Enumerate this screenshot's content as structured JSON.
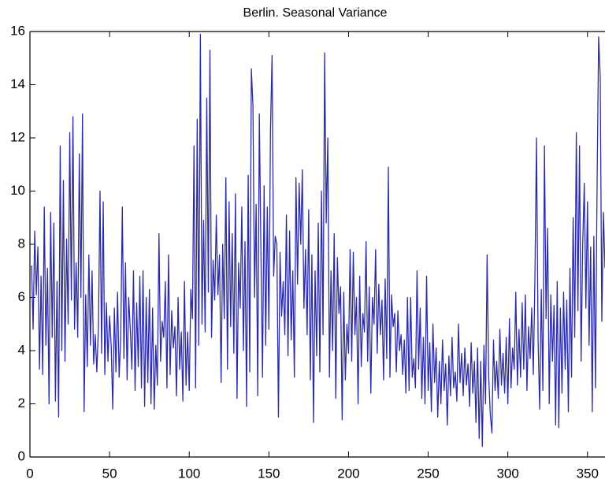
{
  "chart_data": {
    "type": "line",
    "title": "Berlin. Seasonal Variance",
    "color": "#2b2ba8",
    "xlim": [
      0,
      361
    ],
    "ylim": [
      0,
      16
    ],
    "xticks": [
      0,
      50,
      100,
      150,
      200,
      250,
      300,
      350
    ],
    "yticks": [
      0,
      2,
      4,
      6,
      8,
      10,
      12,
      14,
      16
    ],
    "x": [
      1,
      2,
      3,
      4,
      5,
      6,
      7,
      8,
      9,
      10,
      11,
      12,
      13,
      14,
      15,
      16,
      17,
      18,
      19,
      20,
      21,
      22,
      23,
      24,
      25,
      26,
      27,
      28,
      29,
      30,
      31,
      32,
      33,
      34,
      35,
      36,
      37,
      38,
      39,
      40,
      41,
      42,
      43,
      44,
      45,
      46,
      47,
      48,
      49,
      50,
      51,
      52,
      53,
      54,
      55,
      56,
      57,
      58,
      59,
      60,
      61,
      62,
      63,
      64,
      65,
      66,
      67,
      68,
      69,
      70,
      71,
      72,
      73,
      74,
      75,
      76,
      77,
      78,
      79,
      80,
      81,
      82,
      83,
      84,
      85,
      86,
      87,
      88,
      89,
      90,
      91,
      92,
      93,
      94,
      95,
      96,
      97,
      98,
      99,
      100,
      101,
      102,
      103,
      104,
      105,
      106,
      107,
      108,
      109,
      110,
      111,
      112,
      113,
      114,
      115,
      116,
      117,
      118,
      119,
      120,
      121,
      122,
      123,
      124,
      125,
      126,
      127,
      128,
      129,
      130,
      131,
      132,
      133,
      134,
      135,
      136,
      137,
      138,
      139,
      140,
      141,
      142,
      143,
      144,
      145,
      146,
      147,
      148,
      149,
      150,
      151,
      152,
      153,
      154,
      155,
      156,
      157,
      158,
      159,
      160,
      161,
      162,
      163,
      164,
      165,
      166,
      167,
      168,
      169,
      170,
      171,
      172,
      173,
      174,
      175,
      176,
      177,
      178,
      179,
      180,
      181,
      182,
      183,
      184,
      185,
      186,
      187,
      188,
      189,
      190,
      191,
      192,
      193,
      194,
      195,
      196,
      197,
      198,
      199,
      200,
      201,
      202,
      203,
      204,
      205,
      206,
      207,
      208,
      209,
      210,
      211,
      212,
      213,
      214,
      215,
      216,
      217,
      218,
      219,
      220,
      221,
      222,
      223,
      224,
      225,
      226,
      227,
      228,
      229,
      230,
      231,
      232,
      233,
      234,
      235,
      236,
      237,
      238,
      239,
      240,
      241,
      242,
      243,
      244,
      245,
      246,
      247,
      248,
      249,
      250,
      251,
      252,
      253,
      254,
      255,
      256,
      257,
      258,
      259,
      260,
      261,
      262,
      263,
      264,
      265,
      266,
      267,
      268,
      269,
      270,
      271,
      272,
      273,
      274,
      275,
      276,
      277,
      278,
      279,
      280,
      281,
      282,
      283,
      284,
      285,
      286,
      287,
      288,
      289,
      290,
      291,
      292,
      293,
      294,
      295,
      296,
      297,
      298,
      299,
      300,
      301,
      302,
      303,
      304,
      305,
      306,
      307,
      308,
      309,
      310,
      311,
      312,
      313,
      314,
      315,
      316,
      317,
      318,
      319,
      320,
      321,
      322,
      323,
      324,
      325,
      326,
      327,
      328,
      329,
      330,
      331,
      332,
      333,
      334,
      335,
      336,
      337,
      338,
      339,
      340,
      341,
      342,
      343,
      344,
      345,
      346,
      347,
      348,
      349,
      350,
      351,
      352,
      353,
      354,
      355,
      356,
      357,
      358,
      359,
      360,
      361
    ],
    "values": [
      7.2,
      4.8,
      8.5,
      6.1,
      7.9,
      3.3,
      6.8,
      3.1,
      9.4,
      4.2,
      7.1,
      2.0,
      9.2,
      4.5,
      8.8,
      2.1,
      6.6,
      1.5,
      11.7,
      4.0,
      10.4,
      3.6,
      8.2,
      5.0,
      12.2,
      5.9,
      12.8,
      4.8,
      7.3,
      4.5,
      11.4,
      6.0,
      12.9,
      1.7,
      6.1,
      3.4,
      7.6,
      4.2,
      7.0,
      3.5,
      4.6,
      3.2,
      4.9,
      10.0,
      3.9,
      9.6,
      3.1,
      5.8,
      3.6,
      5.3,
      4.2,
      1.8,
      5.6,
      3.2,
      6.2,
      3.0,
      4.5,
      9.4,
      3.7,
      7.3,
      2.9,
      6.0,
      4.8,
      3.3,
      7.0,
      2.5,
      5.8,
      3.4,
      6.8,
      2.6,
      7.0,
      1.9,
      6.0,
      2.8,
      6.3,
      2.0,
      5.6,
      1.8,
      4.2,
      2.7,
      8.4,
      3.6,
      5.1,
      4.5,
      6.6,
      2.6,
      7.6,
      3.1,
      5.5,
      4.1,
      4.9,
      2.3,
      6.0,
      3.3,
      4.7,
      2.1,
      6.6,
      2.7,
      4.7,
      2.5,
      6.3,
      5.2,
      11.7,
      2.6,
      12.7,
      4.2,
      15.9,
      5.0,
      8.9,
      4.7,
      13.5,
      6.2,
      15.3,
      4.5,
      7.4,
      5.9,
      9.1,
      6.1,
      7.6,
      2.8,
      8.0,
      5.2,
      10.5,
      3.3,
      9.6,
      4.9,
      8.4,
      3.9,
      9.9,
      2.2,
      7.3,
      5.6,
      9.4,
      4.0,
      8.1,
      1.9,
      10.6,
      3.2,
      14.6,
      13.2,
      6.0,
      9.5,
      2.3,
      12.9,
      7.8,
      3.0,
      10.2,
      4.2,
      9.4,
      4.8,
      12.3,
      15.1,
      6.8,
      8.3,
      8.0,
      1.5,
      7.7,
      5.3,
      6.6,
      4.6,
      9.1,
      3.8,
      8.5,
      4.4,
      7.0,
      3.0,
      10.5,
      6.5,
      10.3,
      8.0,
      10.8,
      5.6,
      7.8,
      4.6,
      9.3,
      2.9,
      7.6,
      1.3,
      7.0,
      3.8,
      8.8,
      3.2,
      10.0,
      4.6,
      15.2,
      8.8,
      12.0,
      3.0,
      7.0,
      4.0,
      8.4,
      2.2,
      7.5,
      5.4,
      6.4,
      1.4,
      6.2,
      2.9,
      5.0,
      3.9,
      7.8,
      3.6,
      7.7,
      4.6,
      6.0,
      2.0,
      6.8,
      3.4,
      5.4,
      4.7,
      8.1,
      3.6,
      6.4,
      2.4,
      6.0,
      5.0,
      7.8,
      3.9,
      6.5,
      4.6,
      5.9,
      2.9,
      6.7,
      3.7,
      10.9,
      3.0,
      6.1,
      4.9,
      5.4,
      3.2,
      5.5,
      4.0,
      4.6,
      3.1,
      4.4,
      2.4,
      6.0,
      2.5,
      6.0,
      3.0,
      3.7,
      2.6,
      7.0,
      3.3,
      5.6,
      2.2,
      4.5,
      2.0,
      6.8,
      2.5,
      4.3,
      1.7,
      5.0,
      2.8,
      4.1,
      1.5,
      3.6,
      2.0,
      4.4,
      2.5,
      3.5,
      1.2,
      3.8,
      2.3,
      4.5,
      2.6,
      3.2,
      2.1,
      5.0,
      2.8,
      3.9,
      2.3,
      4.1,
      2.7,
      3.5,
      1.9,
      4.3,
      2.4,
      3.6,
      1.3,
      4.1,
      0.7,
      3.6,
      0.4,
      4.2,
      2.0,
      7.6,
      3.0,
      1.6,
      0.9,
      4.4,
      2.5,
      3.6,
      2.2,
      4.8,
      2.7,
      3.9,
      2.4,
      4.5,
      2.0,
      5.2,
      2.6,
      4.1,
      3.3,
      6.2,
      2.7,
      4.8,
      3.0,
      5.8,
      3.3,
      6.1,
      2.5,
      4.9,
      3.7,
      5.6,
      3.1,
      6.7,
      12.0,
      4.4,
      1.8,
      6.3,
      2.5,
      11.7,
      5.2,
      8.6,
      2.0,
      6.1,
      3.6,
      5.7,
      1.2,
      6.6,
      1.1,
      5.6,
      2.4,
      6.2,
      3.3,
      5.9,
      1.7,
      7.1,
      3.0,
      9.0,
      4.5,
      12.2,
      5.5,
      11.7,
      3.6,
      8.0,
      10.3,
      5.6,
      9.6,
      4.2,
      7.9,
      1.7,
      8.3,
      2.6,
      10.0,
      15.8,
      14.3,
      5.1,
      9.2,
      7.1
    ]
  }
}
